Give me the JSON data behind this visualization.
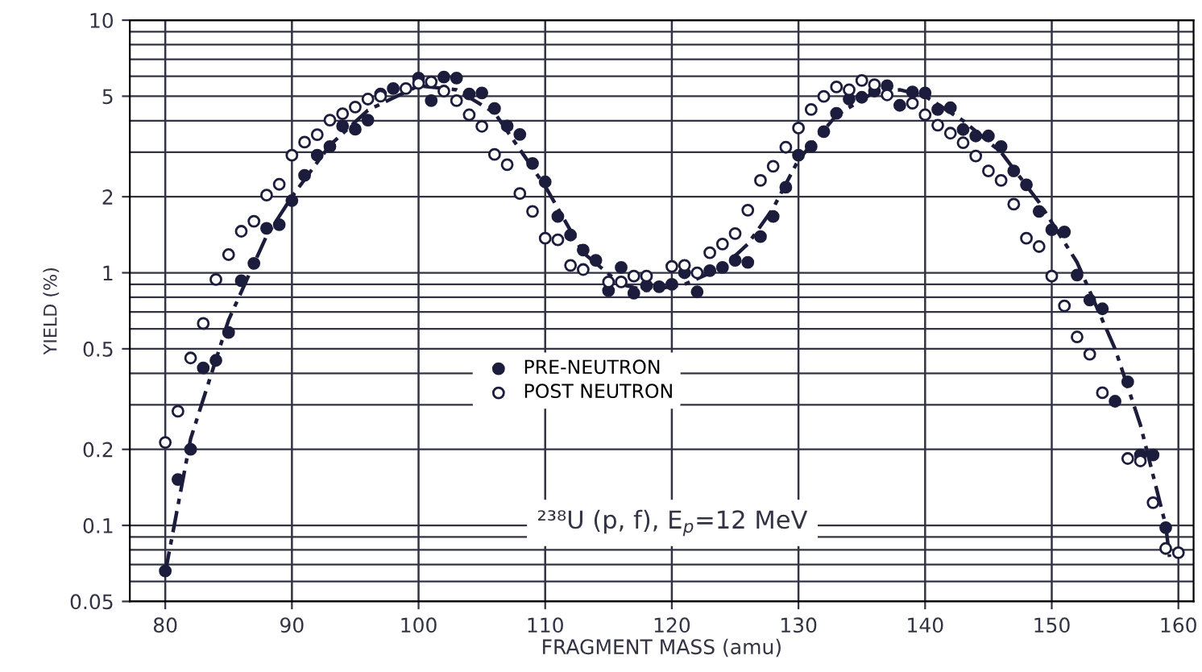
{
  "chart_data": {
    "type": "scatter",
    "xlabel": "FRAGMENT MASS (amu)",
    "ylabel": "YIELD (%)",
    "log": "y",
    "grid": true,
    "legend": "center",
    "xlim": [
      77.2,
      161.2
    ],
    "ylim": [
      0.05,
      10
    ],
    "xticks": [
      80,
      90,
      100,
      110,
      120,
      130,
      140,
      150,
      160
    ],
    "yticks": [
      0.05,
      0.1,
      0.2,
      0.5,
      1,
      2,
      5,
      10
    ],
    "annotations": [
      "²³⁸U (p, f), E$_{p}$=12 MeV"
    ],
    "series": [
      {
        "name": "PRE-NEUTRON",
        "marker": "circle",
        "color": "#1c1c3c",
        "x": [
          80,
          81,
          82,
          83,
          84,
          85,
          86,
          87,
          88,
          89,
          90,
          91,
          92,
          93,
          94,
          95,
          96,
          97,
          98,
          100,
          101,
          102,
          103,
          104,
          105,
          106,
          107,
          108,
          109,
          110,
          111,
          112,
          113,
          114,
          115,
          116,
          117,
          118,
          119,
          120,
          121,
          122,
          123,
          124,
          125,
          126,
          127,
          128,
          129,
          130,
          131,
          132,
          133,
          134,
          135,
          136,
          137,
          138,
          139,
          140,
          141,
          142,
          143,
          144,
          145,
          146,
          147,
          148,
          149,
          150,
          151,
          152,
          153,
          154,
          155,
          156,
          157,
          158,
          159
        ],
        "values": [
          0.066,
          0.152,
          0.2,
          0.42,
          0.45,
          0.58,
          0.93,
          1.09,
          1.5,
          1.55,
          1.93,
          2.43,
          2.92,
          3.16,
          3.81,
          3.7,
          4.02,
          5.1,
          5.36,
          5.9,
          4.8,
          5.95,
          5.9,
          5.1,
          5.15,
          4.47,
          3.81,
          3.53,
          2.71,
          2.29,
          1.67,
          1.41,
          1.23,
          1.12,
          0.85,
          1.05,
          0.83,
          0.89,
          0.88,
          0.9,
          1.0,
          0.84,
          1.02,
          1.05,
          1.12,
          1.1,
          1.39,
          1.67,
          2.18,
          2.92,
          3.16,
          3.62,
          4.28,
          4.87,
          4.95,
          5.24,
          5.5,
          4.6,
          5.2,
          5.15,
          4.43,
          4.5,
          3.69,
          3.48,
          3.48,
          3.16,
          2.53,
          2.23,
          1.75,
          1.48,
          1.45,
          0.98,
          0.78,
          0.72,
          0.31,
          0.37,
          0.19,
          0.19,
          0.098
        ]
      },
      {
        "name": "POST NEUTRON",
        "marker": "circle",
        "color": "#1c1c3c",
        "x": [
          80,
          81,
          82,
          83,
          84,
          85,
          86,
          87,
          88,
          89,
          90,
          91,
          92,
          93,
          94,
          95,
          96,
          97,
          99,
          100,
          101,
          102,
          103,
          104,
          105,
          106,
          107,
          108,
          109,
          110,
          111,
          112,
          113,
          115,
          116,
          117,
          118,
          120,
          121,
          122,
          123,
          124,
          125,
          126,
          127,
          128,
          129,
          130,
          131,
          132,
          133,
          134,
          135,
          136,
          137,
          139,
          140,
          141,
          142,
          143,
          144,
          145,
          146,
          147,
          148,
          149,
          150,
          151,
          152,
          153,
          154,
          156,
          157,
          158,
          159,
          160
        ],
        "values": [
          0.213,
          0.283,
          0.46,
          0.63,
          0.94,
          1.18,
          1.46,
          1.6,
          2.03,
          2.24,
          2.92,
          3.29,
          3.52,
          4.02,
          4.26,
          4.53,
          4.87,
          5.0,
          5.36,
          5.62,
          5.7,
          5.24,
          4.8,
          4.22,
          3.8,
          2.94,
          2.68,
          2.06,
          1.75,
          1.37,
          1.35,
          1.07,
          1.03,
          0.92,
          0.92,
          0.97,
          0.97,
          1.06,
          1.07,
          1.0,
          1.2,
          1.3,
          1.43,
          1.77,
          2.32,
          2.64,
          3.14,
          3.74,
          4.43,
          4.99,
          5.44,
          5.3,
          5.77,
          5.55,
          5.06,
          4.69,
          4.22,
          3.84,
          3.57,
          3.27,
          2.9,
          2.53,
          2.32,
          1.87,
          1.37,
          1.27,
          0.97,
          0.74,
          0.557,
          0.476,
          0.335,
          0.184,
          0.18,
          0.123,
          0.081,
          0.078
        ]
      },
      {
        "type": "line",
        "line_style": "dashed",
        "color": "#1c1c3c",
        "x": [
          80,
          82,
          85,
          88,
          90,
          93,
          96,
          100,
          103,
          106,
          110,
          113,
          116,
          118,
          121,
          124,
          126,
          128,
          130,
          133,
          136,
          138,
          140,
          143,
          146,
          149,
          152,
          155,
          157,
          159,
          159.3
        ],
        "values": [
          0.065,
          0.22,
          0.65,
          1.4,
          2.0,
          3.2,
          4.4,
          5.5,
          5.3,
          4.3,
          2.2,
          1.2,
          0.9,
          0.85,
          0.9,
          1.05,
          1.3,
          1.8,
          2.8,
          4.2,
          5.2,
          5.3,
          5.0,
          4.0,
          3.0,
          1.9,
          1.1,
          0.5,
          0.25,
          0.1,
          0.075
        ]
      }
    ]
  }
}
